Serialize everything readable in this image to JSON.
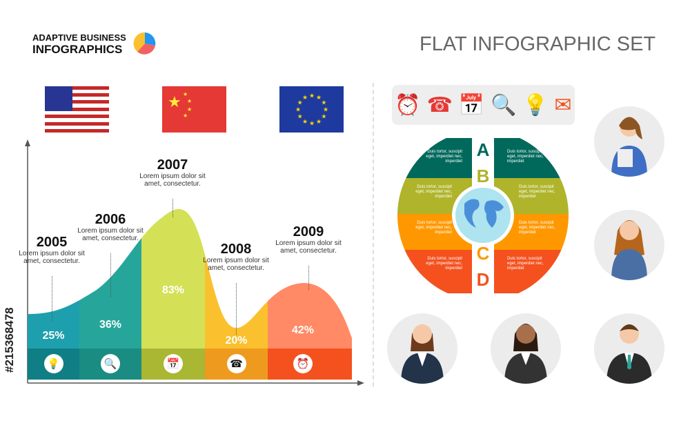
{
  "logo": {
    "line1": "ADAPTIVE BUSINESS",
    "line2": "INFOGRAPHICS"
  },
  "title": "FLAT INFOGRAPHIC SET",
  "watermark": "#215368478",
  "flags": [
    "usa-flag",
    "china-flag",
    "eu-flag"
  ],
  "chart_data": {
    "type": "area",
    "categories": [
      "2005",
      "2006",
      "2007",
      "2008",
      "2009"
    ],
    "values": [
      25,
      36,
      83,
      20,
      42
    ],
    "value_labels": [
      "25%",
      "36%",
      "83%",
      "20%",
      "42%"
    ],
    "descriptions": [
      "Lorem ipsum dolor sit amet, consectetur.",
      "Lorem ipsum dolor sit amet, consectetur.",
      "Lorem ipsum dolor sit amet, consectetur.",
      "Lorem ipsum dolor sit amet, consectetur.",
      "Lorem ipsum dolor sit amet, consectetur."
    ],
    "colors": [
      "#1e9fae",
      "#26a69a",
      "#d4e157",
      "#fbc02d",
      "#ff8a65"
    ],
    "band_colors": [
      "#0f7f85",
      "#1a8c82",
      "#a9b733",
      "#ee9a1f",
      "#f4511e"
    ],
    "icons": [
      "bulb-icon",
      "magnifier-icon",
      "calendar-icon",
      "phone-icon",
      "alarm-clock-icon"
    ]
  },
  "toolbar_icons": [
    {
      "name": "alarm-clock-icon",
      "glyph": "⏰"
    },
    {
      "name": "phone-icon",
      "glyph": "☎"
    },
    {
      "name": "calendar-icon",
      "glyph": "📅"
    },
    {
      "name": "magnifier-icon",
      "glyph": "🔍"
    },
    {
      "name": "bulb-icon",
      "glyph": "💡"
    },
    {
      "name": "envelope-icon",
      "glyph": "✉"
    }
  ],
  "circle": {
    "letters": [
      "A",
      "B",
      "C",
      "D"
    ],
    "letter_colors": [
      "#00695c",
      "#afb42b",
      "#ff9800",
      "#f4511e"
    ],
    "row_colors": [
      "#00695c",
      "#afb42b",
      "#ff9800",
      "#f4511e"
    ],
    "cell_text": "Duis tortor, suscipit eget, imperdiet nec, imperdiet"
  }
}
